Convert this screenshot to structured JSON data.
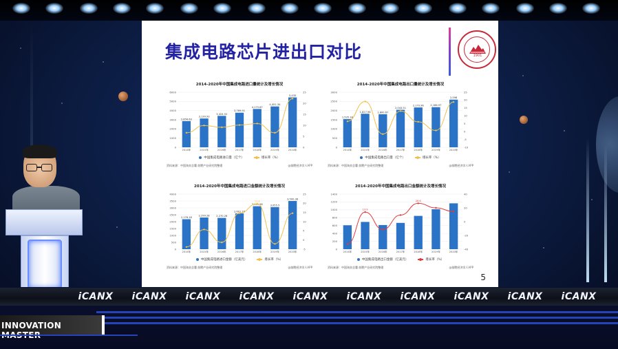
{
  "slide": {
    "title": "集成电路芯片进出口对比",
    "page_number": "5",
    "logo_year": "1901"
  },
  "brand": {
    "repeat_text": "iCANX",
    "count": 10
  },
  "name_plate": {
    "text": "INNOVATION MASTER"
  },
  "colors": {
    "slide_title": "#2323a3",
    "bar_blue": "#2b73c6",
    "line_orange": "#f2c04c",
    "line_red": "#e23b3b",
    "brand_blue": "#2743b8"
  },
  "chart_data": [
    {
      "type": "bar",
      "title": "2014-2020年中国集成电路进口量统计及增长情况",
      "categories": [
        "2014年",
        "2015年",
        "2016年",
        "2017年",
        "2018年",
        "2019年",
        "2020年"
      ],
      "series": [
        {
          "name": "中国集成电路进口量（亿个）",
          "values": [
            2856.63,
            3139.93,
            3424.52,
            3769.91,
            4175.67,
            4451.34,
            5435
          ],
          "axis": "left"
        },
        {
          "name": "增长率（%）",
          "values": [
            6.6,
            9.9,
            9.1,
            10.1,
            10.8,
            6.6,
            22.1
          ],
          "axis": "right"
        }
      ],
      "value_labels": [
        "2,856.63",
        "3,139.93",
        "3,424.52",
        "3,769.91",
        "4,175.67",
        "4,451.34",
        "5,435"
      ],
      "ylim_left": [
        0,
        6000
      ],
      "ylim_right": [
        0,
        25
      ],
      "left_ticks": [
        "0",
        "1000",
        "2000",
        "3000",
        "4000",
        "5000",
        "6000"
      ],
      "right_ticks": [
        "0",
        "5",
        "10",
        "15",
        "20",
        "25"
      ],
      "ylabel": "",
      "source": "资料来源：中国海关总署 前瞻产业研究院整理",
      "source_right": "@前瞻经济学人APP"
    },
    {
      "type": "bar",
      "title": "2014-2020年中国集成电路出口量统计及增长情况",
      "categories": [
        "2014年",
        "2015年",
        "2016年",
        "2017年",
        "2018年",
        "2019年",
        "2020年"
      ],
      "series": [
        {
          "name": "中国集成电路出口量（亿个）",
          "values": [
            1535.18,
            1827.96,
            1800.67,
            2043.51,
            2170.96,
            2186.97,
            2598
          ],
          "axis": "left"
        },
        {
          "name": "增长率（%）",
          "values": [
            6.5,
            19.1,
            -1.6,
            13.0,
            6.2,
            0.7,
            18.8
          ],
          "axis": "right"
        }
      ],
      "value_labels": [
        "1,535.18",
        "1,827.96",
        "1,800.67",
        "2,043.51",
        "2,170.96",
        "2,186.97",
        "2,598"
      ],
      "ylim_left": [
        0,
        3000
      ],
      "ylim_right": [
        -10,
        25
      ],
      "left_ticks": [
        "0",
        "500",
        "1000",
        "1500",
        "2000",
        "2500",
        "3000"
      ],
      "right_ticks": [
        "-10",
        "-5",
        "0",
        "5",
        "10",
        "15",
        "20",
        "25"
      ],
      "source": "资料来源：中国海关总署 前瞻产业研究院整理",
      "source_right": "@前瞻经济学人APP"
    },
    {
      "type": "bar",
      "title": "2014-2020年中国集成电路进口金额统计及增长情况",
      "categories": [
        "2014年",
        "2015年",
        "2016年",
        "2017年",
        "2018年",
        "2019年",
        "2020年"
      ],
      "series": [
        {
          "name": "中国集成电路进口金额（亿美元）",
          "values": [
            2176.18,
            2299.28,
            2270.26,
            2601.16,
            3120.58,
            3055.5,
            3500.36
          ],
          "axis": "left"
        },
        {
          "name": "增长率（%）",
          "values": [
            -3.8,
            5.7,
            -1.3,
            14.6,
            19.8,
            -2.1,
            14.6
          ],
          "axis": "right"
        }
      ],
      "value_labels": [
        "2,176.18",
        "2,299.28",
        "2,270.26",
        "2,601.16",
        "3,120.58",
        "3,055.5",
        "3,500.36"
      ],
      "data_labels_right": [
        "19.8"
      ],
      "ylim_left": [
        0,
        4000
      ],
      "ylim_right": [
        -5,
        25
      ],
      "left_ticks": [
        "0",
        "500",
        "1000",
        "1500",
        "2000",
        "2500",
        "3000",
        "3500",
        "4000"
      ],
      "right_ticks": [
        "-5",
        "0",
        "5",
        "10",
        "15",
        "20",
        "25"
      ],
      "source": "资料来源：中国海关总署 前瞻产业研究院整理",
      "source_right": "@前瞻经济学人APP"
    },
    {
      "type": "bar",
      "title": "2014-2020年中国集成电路出口金额统计及增长情况",
      "categories": [
        "2014年",
        "2015年",
        "2016年",
        "2017年",
        "2018年",
        "2019年",
        "2020年"
      ],
      "series": [
        {
          "name": "中国集成电路出口金额（亿美元）",
          "values": [
            608.6,
            693.1,
            613.8,
            668.8,
            846.4,
            1015.8,
            1166
          ],
          "axis": "left"
        },
        {
          "name": "增长率（%）",
          "values": [
            -32.4,
            13.9,
            -11.4,
            9.6,
            26.6,
            20.0,
            14.8
          ],
          "axis": "right"
        }
      ],
      "ylim_left": [
        0,
        1400
      ],
      "ylim_right": [
        -40,
        40
      ],
      "left_ticks": [
        "0",
        "200",
        "400",
        "600",
        "800",
        "1000",
        "1200",
        "1400"
      ],
      "right_ticks": [
        "-40",
        "-20",
        "0",
        "20",
        "40"
      ],
      "data_labels_right": [
        "13.9",
        "26.6"
      ],
      "source": "资料来源：中国海关总署 前瞻产业研究院整理",
      "source_right": "@前瞻经济学人APP"
    }
  ]
}
